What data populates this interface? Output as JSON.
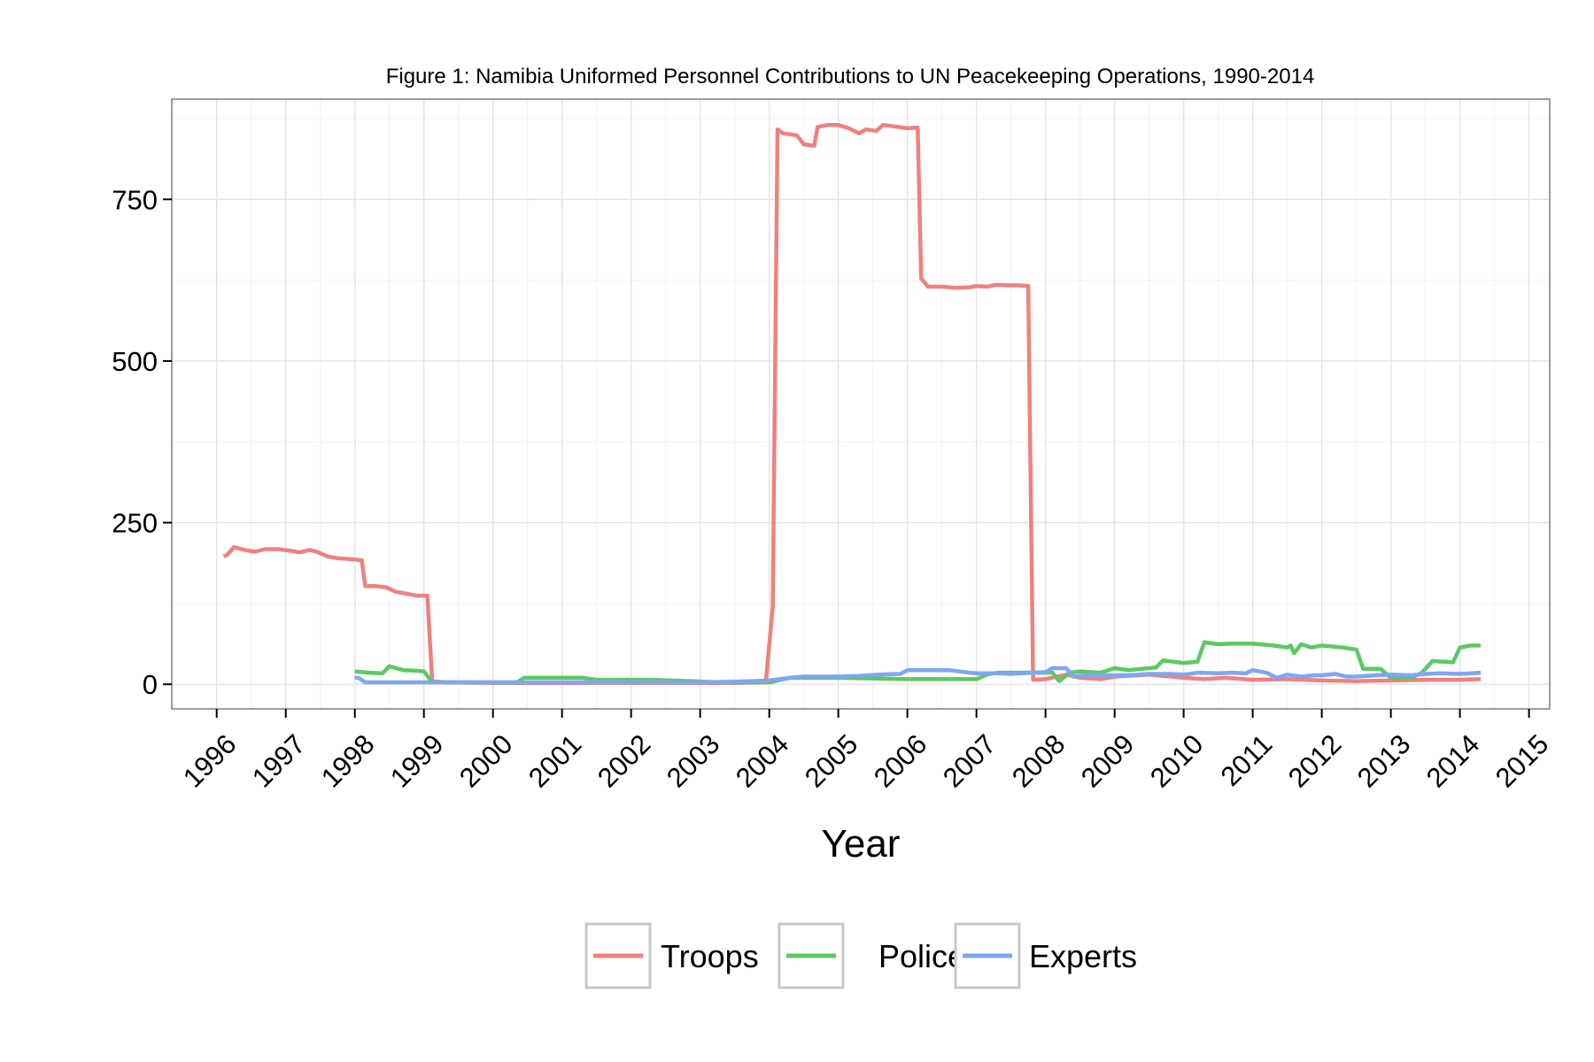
{
  "chart_data": {
    "type": "line",
    "title": "Figure 1: Namibia Uniformed Personnel Contributions to UN Peacekeeping Operations, 1990-2014",
    "xlabel": "Year",
    "ylabel": "",
    "xlim": [
      1995.35,
      2015.3
    ],
    "ylim": [
      -38,
      905
    ],
    "x_ticks": [
      1996,
      1997,
      1998,
      1999,
      2000,
      2001,
      2002,
      2003,
      2004,
      2005,
      2006,
      2007,
      2008,
      2009,
      2010,
      2011,
      2012,
      2013,
      2014,
      2015
    ],
    "y_ticks": [
      0,
      250,
      500,
      750
    ],
    "grid": true,
    "legend_position": "bottom",
    "series": [
      {
        "name": "Troops",
        "color": "#F08080",
        "points": [
          [
            1996.1,
            198
          ],
          [
            1996.15,
            200
          ],
          [
            1996.25,
            212
          ],
          [
            1996.4,
            208
          ],
          [
            1996.55,
            205
          ],
          [
            1996.7,
            209
          ],
          [
            1996.9,
            209
          ],
          [
            1997.1,
            206
          ],
          [
            1997.2,
            204
          ],
          [
            1997.35,
            208
          ],
          [
            1997.45,
            205
          ],
          [
            1997.6,
            198
          ],
          [
            1997.75,
            195
          ],
          [
            1998.0,
            193
          ],
          [
            1998.1,
            192
          ],
          [
            1998.15,
            152
          ],
          [
            1998.3,
            152
          ],
          [
            1998.45,
            150
          ],
          [
            1998.6,
            143
          ],
          [
            1998.75,
            140
          ],
          [
            1998.9,
            137
          ],
          [
            1999.05,
            137
          ],
          [
            1999.12,
            5
          ],
          [
            1999.3,
            3
          ],
          [
            2000.0,
            2
          ],
          [
            2001.0,
            2
          ],
          [
            2002.0,
            2
          ],
          [
            2003.0,
            2
          ],
          [
            2003.5,
            2
          ],
          [
            2003.95,
            3
          ],
          [
            2004.05,
            120
          ],
          [
            2004.12,
            858
          ],
          [
            2004.2,
            852
          ],
          [
            2004.4,
            849
          ],
          [
            2004.5,
            835
          ],
          [
            2004.65,
            833
          ],
          [
            2004.7,
            862
          ],
          [
            2004.85,
            865
          ],
          [
            2005.0,
            865
          ],
          [
            2005.15,
            860
          ],
          [
            2005.3,
            852
          ],
          [
            2005.4,
            858
          ],
          [
            2005.55,
            856
          ],
          [
            2005.65,
            865
          ],
          [
            2005.8,
            863
          ],
          [
            2006.0,
            860
          ],
          [
            2006.15,
            861
          ],
          [
            2006.2,
            628
          ],
          [
            2006.3,
            615
          ],
          [
            2006.5,
            615
          ],
          [
            2006.7,
            613
          ],
          [
            2006.9,
            614
          ],
          [
            2007.0,
            616
          ],
          [
            2007.15,
            615
          ],
          [
            2007.3,
            618
          ],
          [
            2007.45,
            617
          ],
          [
            2007.6,
            617
          ],
          [
            2007.75,
            616
          ],
          [
            2007.82,
            7
          ],
          [
            2008.0,
            8
          ],
          [
            2008.3,
            15
          ],
          [
            2008.5,
            10
          ],
          [
            2008.8,
            8
          ],
          [
            2009.0,
            12
          ],
          [
            2009.5,
            15
          ],
          [
            2010.0,
            10
          ],
          [
            2010.3,
            8
          ],
          [
            2010.6,
            10
          ],
          [
            2011.0,
            7
          ],
          [
            2011.5,
            8
          ],
          [
            2012.0,
            6
          ],
          [
            2012.5,
            5
          ],
          [
            2013.0,
            6
          ],
          [
            2013.5,
            7
          ],
          [
            2014.0,
            7
          ],
          [
            2014.3,
            8
          ]
        ]
      },
      {
        "name": "Police",
        "color": "#5DC863",
        "points": [
          [
            1998.0,
            20
          ],
          [
            1998.2,
            18
          ],
          [
            1998.4,
            17
          ],
          [
            1998.5,
            28
          ],
          [
            1998.7,
            22
          ],
          [
            1998.9,
            21
          ],
          [
            1999.0,
            20
          ],
          [
            1999.12,
            3
          ],
          [
            1999.3,
            3
          ],
          [
            2000.0,
            3
          ],
          [
            2000.35,
            3
          ],
          [
            2000.45,
            10
          ],
          [
            2001.0,
            10
          ],
          [
            2001.3,
            10
          ],
          [
            2001.5,
            7
          ],
          [
            2002.0,
            7
          ],
          [
            2002.3,
            7
          ],
          [
            2003.3,
            3
          ],
          [
            2004.0,
            3
          ],
          [
            2004.3,
            10
          ],
          [
            2005.0,
            10
          ],
          [
            2006.0,
            8
          ],
          [
            2007.0,
            8
          ],
          [
            2007.15,
            15
          ],
          [
            2007.3,
            18
          ],
          [
            2008.0,
            18
          ],
          [
            2008.1,
            18
          ],
          [
            2008.2,
            5
          ],
          [
            2008.35,
            18
          ],
          [
            2008.5,
            20
          ],
          [
            2008.8,
            18
          ],
          [
            2009.0,
            25
          ],
          [
            2009.2,
            22
          ],
          [
            2009.4,
            24
          ],
          [
            2009.6,
            26
          ],
          [
            2009.7,
            37
          ],
          [
            2009.85,
            35
          ],
          [
            2010.0,
            33
          ],
          [
            2010.2,
            35
          ],
          [
            2010.3,
            65
          ],
          [
            2010.5,
            62
          ],
          [
            2010.7,
            63
          ],
          [
            2011.0,
            63
          ],
          [
            2011.3,
            60
          ],
          [
            2011.5,
            57
          ],
          [
            2011.55,
            60
          ],
          [
            2011.6,
            48
          ],
          [
            2011.7,
            62
          ],
          [
            2011.85,
            57
          ],
          [
            2012.0,
            60
          ],
          [
            2012.3,
            57
          ],
          [
            2012.5,
            54
          ],
          [
            2012.6,
            24
          ],
          [
            2012.85,
            24
          ],
          [
            2013.0,
            10
          ],
          [
            2013.3,
            10
          ],
          [
            2013.45,
            18
          ],
          [
            2013.6,
            36
          ],
          [
            2013.9,
            34
          ],
          [
            2014.0,
            57
          ],
          [
            2014.15,
            60
          ],
          [
            2014.3,
            60
          ]
        ]
      },
      {
        "name": "Experts",
        "color": "#7EA6F2",
        "points": [
          [
            1998.0,
            10
          ],
          [
            1998.05,
            10
          ],
          [
            1998.15,
            3
          ],
          [
            1998.5,
            3
          ],
          [
            1999.0,
            3
          ],
          [
            2001.0,
            3
          ],
          [
            2002.0,
            3
          ],
          [
            2003.0,
            3
          ],
          [
            2003.5,
            4
          ],
          [
            2004.0,
            6
          ],
          [
            2004.3,
            10
          ],
          [
            2004.5,
            12
          ],
          [
            2004.7,
            12
          ],
          [
            2005.0,
            12
          ],
          [
            2005.3,
            13
          ],
          [
            2005.6,
            15
          ],
          [
            2005.9,
            16
          ],
          [
            2006.0,
            22
          ],
          [
            2006.3,
            22
          ],
          [
            2006.6,
            22
          ],
          [
            2006.9,
            18
          ],
          [
            2007.0,
            17
          ],
          [
            2007.3,
            17
          ],
          [
            2007.5,
            16
          ],
          [
            2007.8,
            18
          ],
          [
            2008.0,
            19
          ],
          [
            2008.1,
            25
          ],
          [
            2008.3,
            25
          ],
          [
            2008.4,
            12
          ],
          [
            2008.6,
            14
          ],
          [
            2008.9,
            14
          ],
          [
            2009.0,
            14
          ],
          [
            2009.2,
            14
          ],
          [
            2009.5,
            16
          ],
          [
            2009.8,
            16
          ],
          [
            2010.0,
            15
          ],
          [
            2010.2,
            18
          ],
          [
            2010.5,
            17
          ],
          [
            2010.7,
            18
          ],
          [
            2010.9,
            17
          ],
          [
            2011.0,
            22
          ],
          [
            2011.2,
            18
          ],
          [
            2011.35,
            10
          ],
          [
            2011.5,
            15
          ],
          [
            2011.7,
            12
          ],
          [
            2011.9,
            14
          ],
          [
            2012.0,
            14
          ],
          [
            2012.2,
            16
          ],
          [
            2012.35,
            12
          ],
          [
            2012.5,
            12
          ],
          [
            2012.8,
            14
          ],
          [
            2013.0,
            15
          ],
          [
            2013.3,
            14
          ],
          [
            2013.5,
            16
          ],
          [
            2013.7,
            17
          ],
          [
            2014.0,
            16
          ],
          [
            2014.3,
            18
          ]
        ]
      }
    ]
  }
}
